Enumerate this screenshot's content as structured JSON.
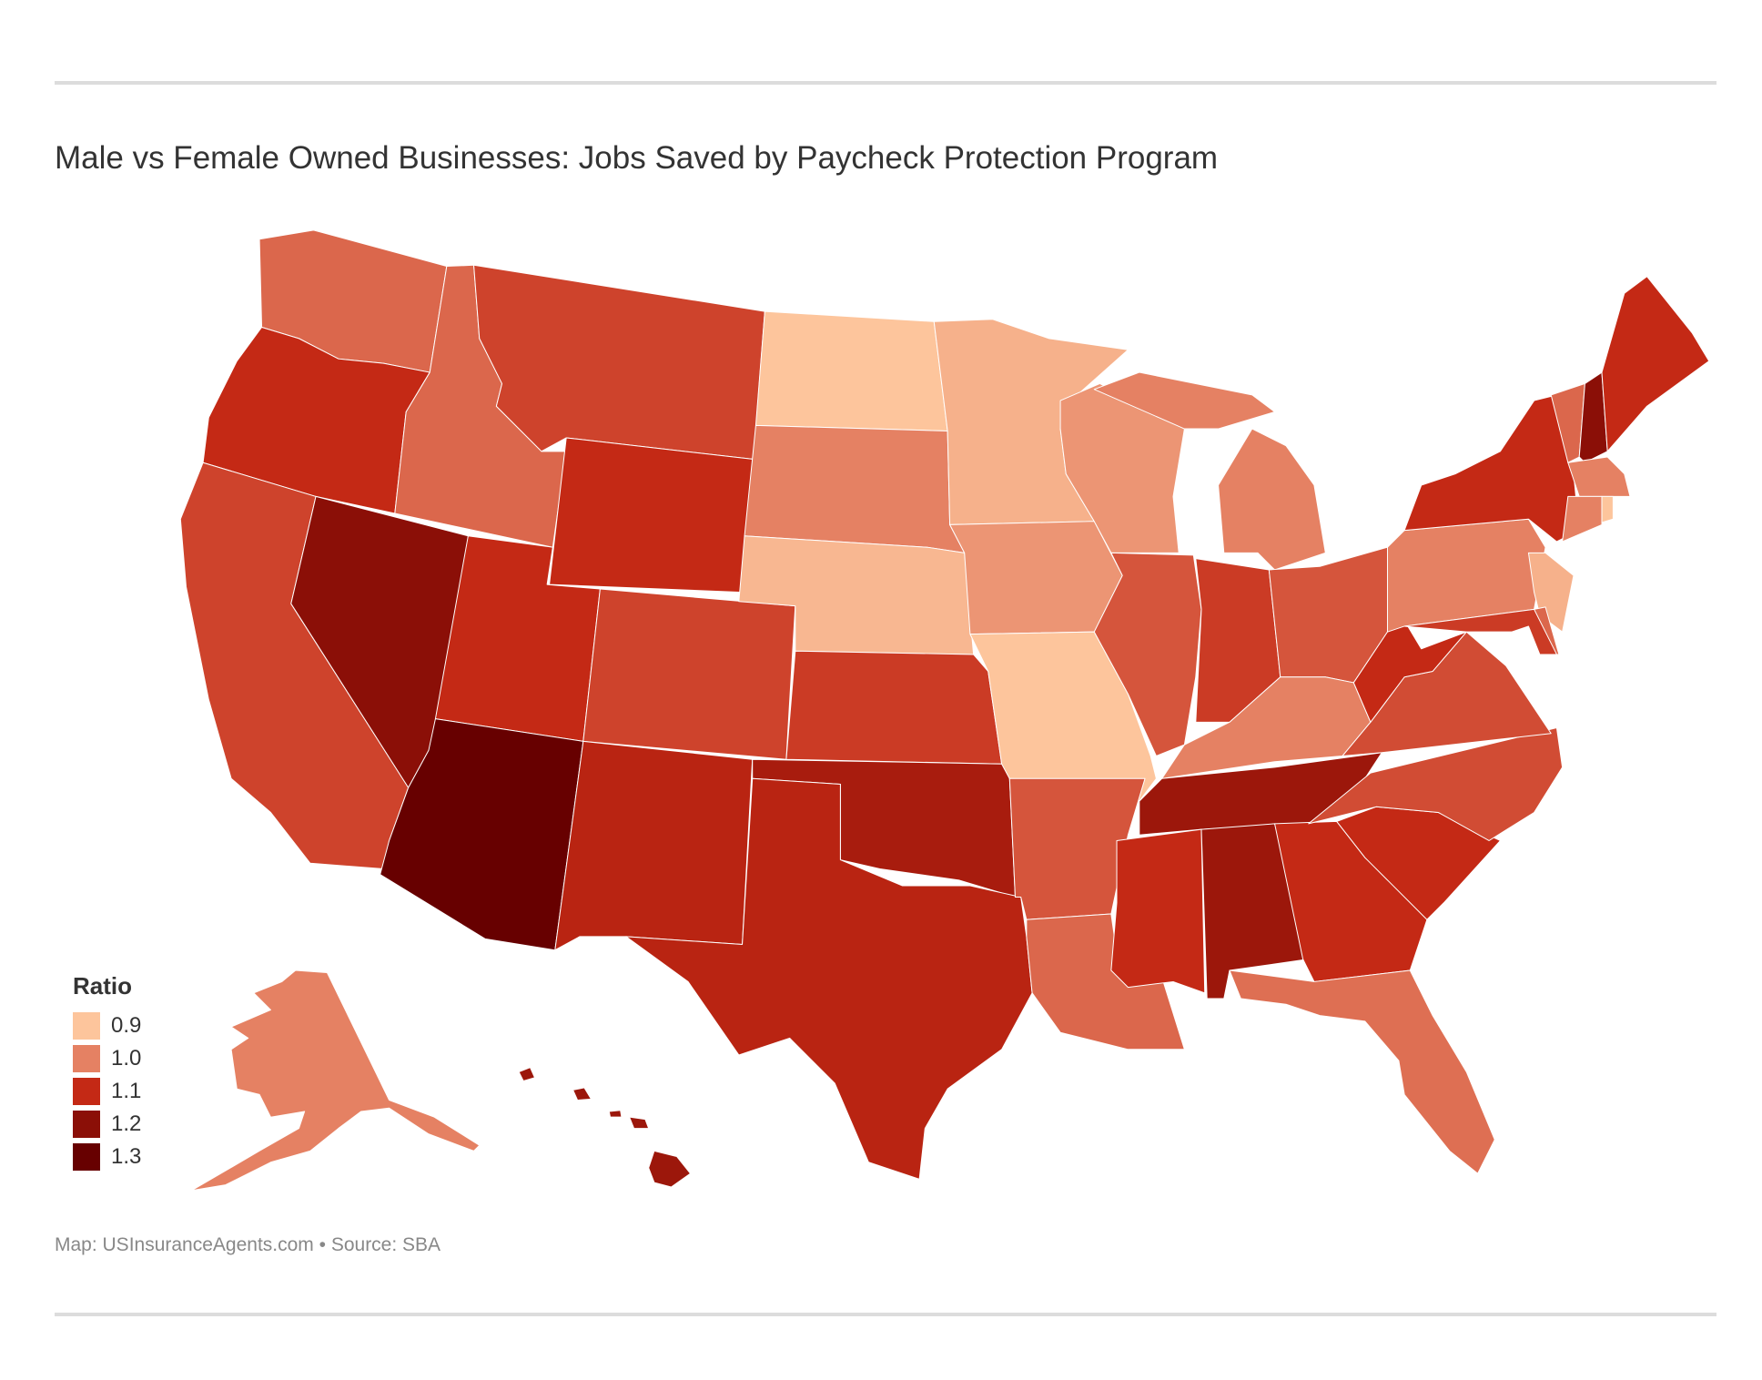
{
  "title": "Male vs Female Owned Businesses: Jobs Saved by Paycheck Protection Program",
  "footer": "Map: USInsuranceAgents.com • Source: SBA",
  "chart_data": {
    "type": "choropleth",
    "title": "Male vs Female Owned Businesses: Jobs Saved by Paycheck Protection Program",
    "legend": {
      "title": "Ratio",
      "placement": "bottom-left",
      "items": [
        {
          "label": "0.9",
          "value": 0.9,
          "color": "#fdc59c"
        },
        {
          "label": "1.0",
          "value": 1.0,
          "color": "#e58163"
        },
        {
          "label": "1.1",
          "value": 1.1,
          "color": "#c42915"
        },
        {
          "label": "1.2",
          "value": 1.2,
          "color": "#8b0f07"
        },
        {
          "label": "1.3",
          "value": 1.3,
          "color": "#670000"
        }
      ]
    },
    "regions": [
      {
        "id": "WA",
        "value": 1.03
      },
      {
        "id": "OR",
        "value": 1.1
      },
      {
        "id": "CA",
        "value": 1.07
      },
      {
        "id": "NV",
        "value": 1.2
      },
      {
        "id": "ID",
        "value": 1.03
      },
      {
        "id": "MT",
        "value": 1.07
      },
      {
        "id": "WY",
        "value": 1.1
      },
      {
        "id": "UT",
        "value": 1.1
      },
      {
        "id": "AZ",
        "value": 1.3
      },
      {
        "id": "CO",
        "value": 1.07
      },
      {
        "id": "NM",
        "value": 1.12
      },
      {
        "id": "ND",
        "value": 0.9
      },
      {
        "id": "SD",
        "value": 1.0
      },
      {
        "id": "NE",
        "value": 0.92
      },
      {
        "id": "KS",
        "value": 1.08
      },
      {
        "id": "OK",
        "value": 1.15
      },
      {
        "id": "TX",
        "value": 1.12
      },
      {
        "id": "MN",
        "value": 0.93
      },
      {
        "id": "IA",
        "value": 0.97
      },
      {
        "id": "MO",
        "value": 0.9
      },
      {
        "id": "AR",
        "value": 1.05
      },
      {
        "id": "LA",
        "value": 1.03
      },
      {
        "id": "WI",
        "value": 0.97
      },
      {
        "id": "IL",
        "value": 1.05
      },
      {
        "id": "MI",
        "value": 1.0
      },
      {
        "id": "IN",
        "value": 1.08
      },
      {
        "id": "OH",
        "value": 1.05
      },
      {
        "id": "KY",
        "value": 1.0
      },
      {
        "id": "TN",
        "value": 1.17
      },
      {
        "id": "MS",
        "value": 1.1
      },
      {
        "id": "AL",
        "value": 1.17
      },
      {
        "id": "GA",
        "value": 1.1
      },
      {
        "id": "FL",
        "value": 1.02
      },
      {
        "id": "SC",
        "value": 1.1
      },
      {
        "id": "NC",
        "value": 1.06
      },
      {
        "id": "VA",
        "value": 1.06
      },
      {
        "id": "WV",
        "value": 1.1
      },
      {
        "id": "PA",
        "value": 1.0
      },
      {
        "id": "NY",
        "value": 1.1
      },
      {
        "id": "VT",
        "value": 1.03
      },
      {
        "id": "NH",
        "value": 1.2
      },
      {
        "id": "ME",
        "value": 1.1
      },
      {
        "id": "MA",
        "value": 1.0
      },
      {
        "id": "RI",
        "value": 0.9
      },
      {
        "id": "CT",
        "value": 1.0
      },
      {
        "id": "NJ",
        "value": 0.93
      },
      {
        "id": "DE",
        "value": 1.03
      },
      {
        "id": "MD",
        "value": 1.08
      },
      {
        "id": "AK",
        "value": 1.0
      },
      {
        "id": "HI",
        "value": 1.17
      }
    ]
  }
}
